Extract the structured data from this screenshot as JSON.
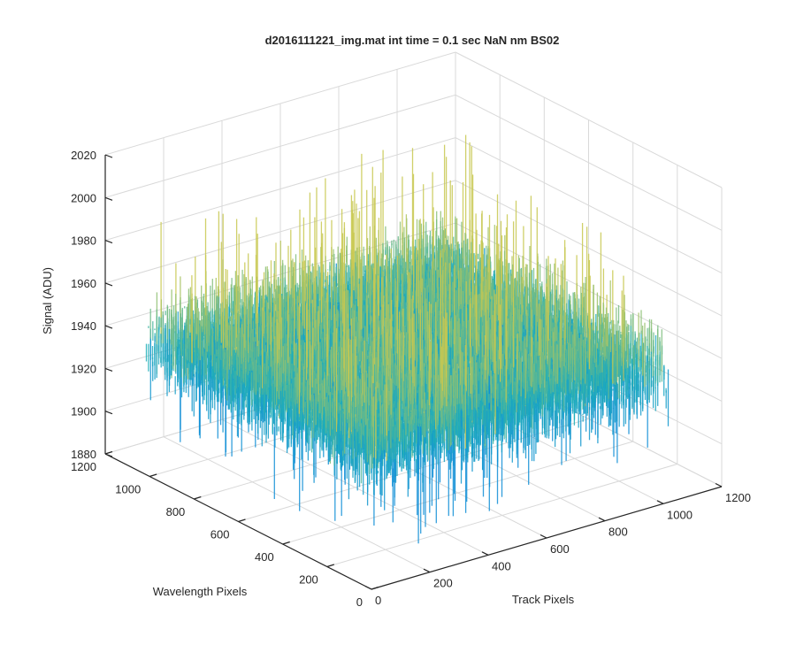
{
  "chart_data": {
    "type": "surface",
    "title": "d2016111221_img.mat int time = 0.1 sec  NaN nm BS02",
    "xlabel": "Track Pixels",
    "ylabel": "Wavelength Pixels",
    "zlabel": "Signal (ADU)",
    "xlim": [
      0,
      1200
    ],
    "ylim": [
      0,
      1200
    ],
    "zlim": [
      1880,
      2020
    ],
    "xticks": [
      "0",
      "200",
      "400",
      "600",
      "800",
      "1000",
      "1200"
    ],
    "yticks": [
      "0",
      "200",
      "400",
      "600",
      "800",
      "1000",
      "1200"
    ],
    "zticks": [
      "1880",
      "1900",
      "1920",
      "1940",
      "1960",
      "1980",
      "2000",
      "2020"
    ],
    "x_data_range": [
      0,
      1024
    ],
    "y_data_range": [
      0,
      1024
    ],
    "z_typical_range": [
      1905,
      1975
    ],
    "z_mean": 1942,
    "z_peak_max": 2005,
    "z_dip_min": 1893,
    "grid": true,
    "colormap": "parula",
    "colors": {
      "low": "#0f8ed6",
      "mid": "#20b0b8",
      "high": "#c8c850"
    }
  }
}
